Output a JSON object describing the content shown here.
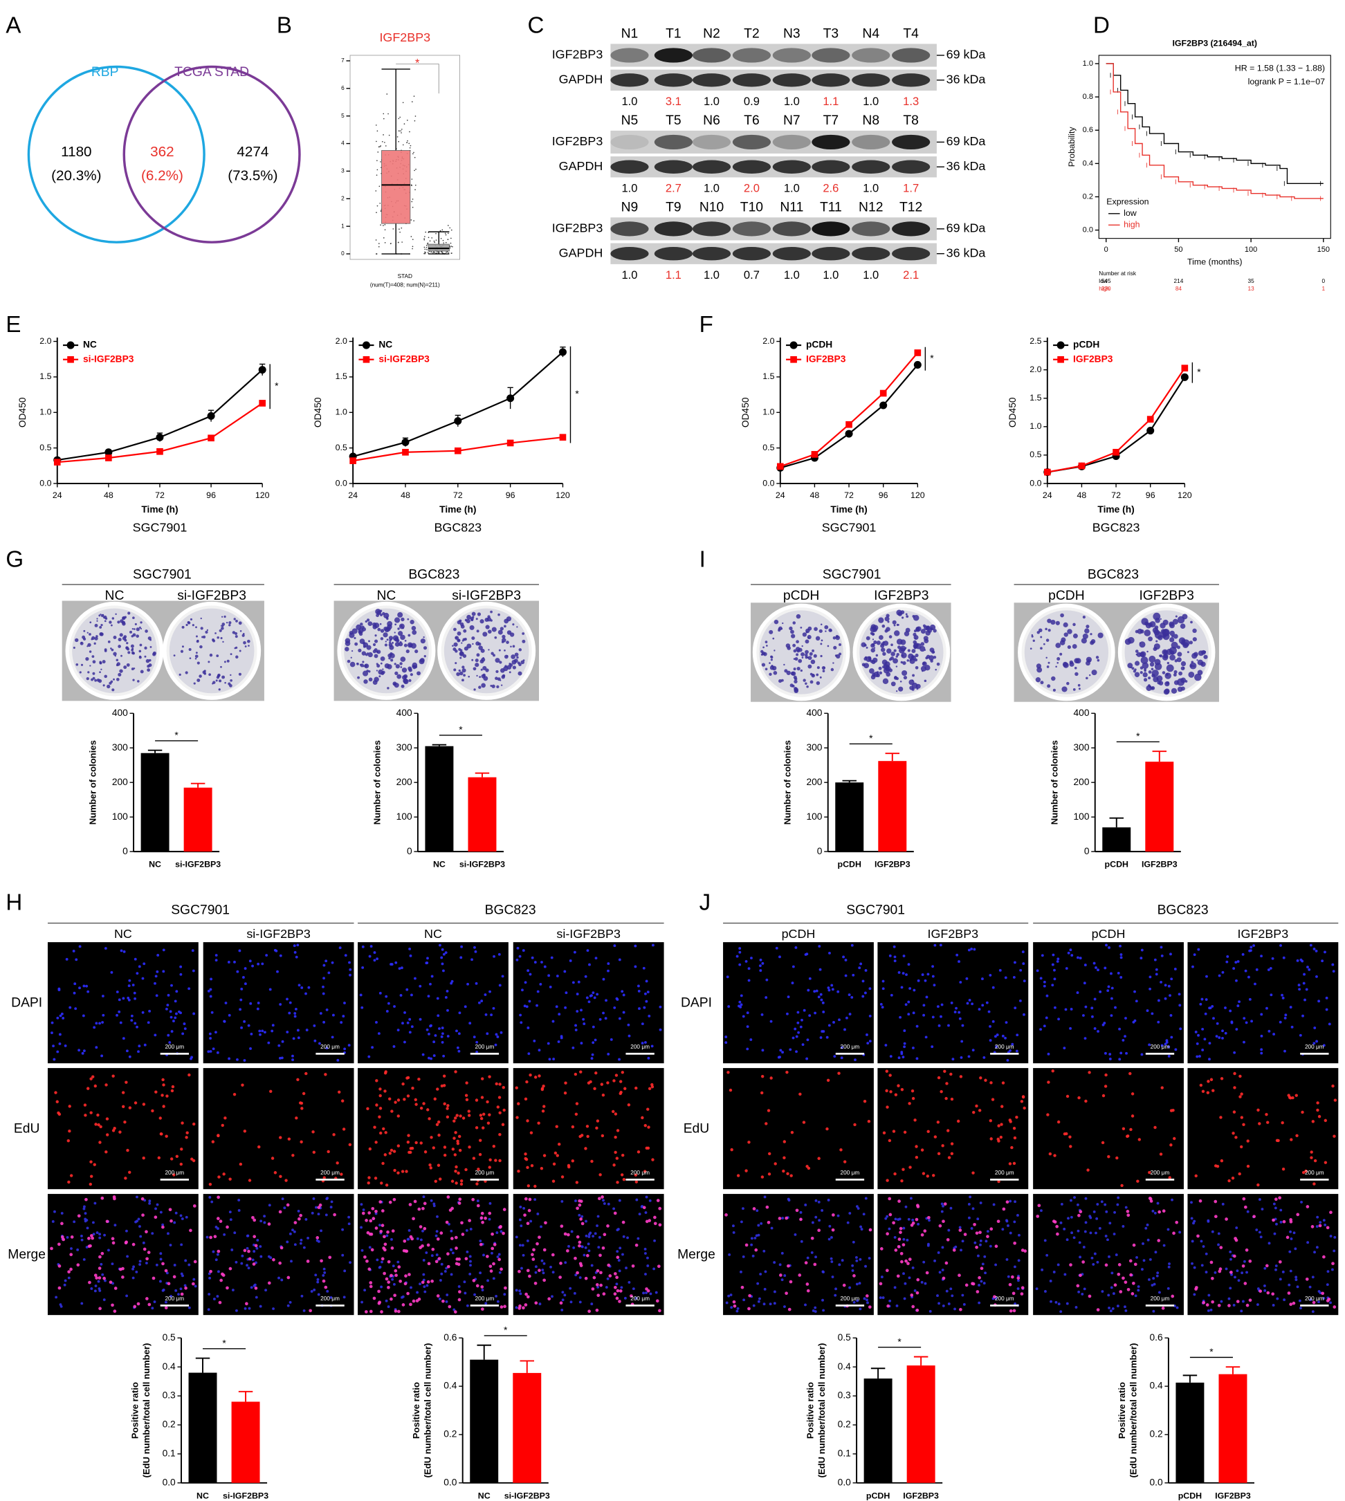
{
  "panel_labels": [
    "A",
    "B",
    "C",
    "D",
    "E",
    "F",
    "G",
    "H",
    "I",
    "J"
  ],
  "venn": {
    "sets": [
      {
        "name": "RBP",
        "color": "#1ea7e1"
      },
      {
        "name": "TCGA STAD",
        "color": "#7b3a96"
      }
    ],
    "regions": [
      {
        "count": "1180",
        "percent": "(20.3%)",
        "color": "#000000"
      },
      {
        "count": "362",
        "percent": "(6.2%)",
        "color": "#e8302a"
      },
      {
        "count": "4274",
        "percent": "(73.5%)",
        "color": "#000000"
      }
    ]
  },
  "blot": {
    "proteins": [
      "IGF2BP3",
      "GAPDH"
    ],
    "sizes": [
      "69 kDa",
      "36 kDa"
    ],
    "rows": [
      {
        "lanes": [
          "N1",
          "T1",
          "N2",
          "T2",
          "N3",
          "T3",
          "N4",
          "T4"
        ],
        "ratios": [
          "1.0",
          "3.1",
          "1.0",
          "0.9",
          "1.0",
          "1.1",
          "1.0",
          "1.3"
        ],
        "ratio_colors": [
          "#000000",
          "#e8302a",
          "#000000",
          "#000000",
          "#000000",
          "#e8302a",
          "#000000",
          "#e8302a"
        ]
      },
      {
        "lanes": [
          "N5",
          "T5",
          "N6",
          "T6",
          "N7",
          "T7",
          "N8",
          "T8"
        ],
        "ratios": [
          "1.0",
          "2.7",
          "1.0",
          "2.0",
          "1.0",
          "2.6",
          "1.0",
          "1.7"
        ],
        "ratio_colors": [
          "#000000",
          "#e8302a",
          "#000000",
          "#e8302a",
          "#000000",
          "#e8302a",
          "#000000",
          "#e8302a"
        ]
      },
      {
        "lanes": [
          "N9",
          "T9",
          "N10",
          "T10",
          "N11",
          "T11",
          "N12",
          "T12"
        ],
        "ratios": [
          "1.0",
          "1.1",
          "1.0",
          "0.7",
          "1.0",
          "1.0",
          "1.0",
          "2.1"
        ],
        "ratio_colors": [
          "#000000",
          "#e8302a",
          "#000000",
          "#000000",
          "#000000",
          "#000000",
          "#000000",
          "#e8302a"
        ]
      }
    ]
  },
  "chart_data": [
    {
      "type": "box",
      "title": "IGF2BP3",
      "title_color": "#e8302a",
      "xlabel": "STAD",
      "xnote": "(num(T)=408; num(N)=211)",
      "annotation": "*",
      "annotation_color": "#e8302a",
      "categories": [
        null,
        null
      ],
      "ylim": [
        -0.2,
        7.2
      ],
      "yticks": [
        0,
        1,
        2,
        3,
        4,
        5,
        6,
        7
      ],
      "series": [
        {
          "color": "#f0787a",
          "q1": 1.1,
          "median": 2.5,
          "q3": 3.75,
          "low": 0,
          "high": 6.7
        },
        {
          "color": "#9e9e9e",
          "q1": 0.1,
          "median": 0.2,
          "q3": 0.35,
          "low": 0,
          "high": 0.8
        }
      ]
    },
    {
      "type": "km",
      "title": "IGF2BP3 (216494_at)",
      "hr": "HR = 1.58 (1.33 − 1.88)",
      "logrank": "logrank P = 1.1e−07",
      "xlabel": "Time (months)",
      "ylabel": "Probability",
      "legend_title": "Expression",
      "xlim": [
        -5,
        155
      ],
      "ylim": [
        -0.05,
        1.05
      ],
      "xticks": [
        0,
        50,
        100,
        150
      ],
      "yticks": [
        {
          "value": 0,
          "label": "0.0"
        },
        0.2,
        0.4,
        0.6,
        0.8,
        {
          "value": 1,
          "label": "1.0"
        }
      ],
      "series": [
        {
          "name": "low",
          "color": "#000000",
          "x": [
            0,
            5,
            10,
            15,
            20,
            25,
            30,
            40,
            50,
            60,
            70,
            80,
            90,
            100,
            110,
            120,
            125,
            150
          ],
          "values": [
            1.0,
            0.93,
            0.84,
            0.76,
            0.68,
            0.62,
            0.58,
            0.52,
            0.47,
            0.45,
            0.44,
            0.43,
            0.42,
            0.4,
            0.39,
            0.37,
            0.28,
            0.28
          ]
        },
        {
          "name": "high",
          "color": "#e8302a",
          "x": [
            0,
            5,
            10,
            15,
            20,
            25,
            30,
            40,
            50,
            60,
            70,
            80,
            90,
            100,
            110,
            120,
            130,
            150
          ],
          "values": [
            1.0,
            0.83,
            0.71,
            0.61,
            0.52,
            0.45,
            0.39,
            0.32,
            0.29,
            0.27,
            0.26,
            0.25,
            0.24,
            0.22,
            0.21,
            0.2,
            0.19,
            0.19
          ]
        }
      ],
      "risk_table": {
        "title": "Number at risk",
        "rows": [
          {
            "name": "low",
            "color": "#000000",
            "values": [
              545,
              214,
              35,
              0
            ]
          },
          {
            "name": "high",
            "color": "#e8302a",
            "values": [
              330,
              84,
              13,
              1
            ]
          }
        ]
      }
    },
    {
      "type": "line",
      "xlabel": "Time (h)",
      "ylabel": "OD450",
      "caption": "SGC7901",
      "annotation": "*",
      "x": [
        24,
        48,
        72,
        96,
        120
      ],
      "xlim": [
        24,
        120
      ],
      "xticks": [
        24,
        48,
        72,
        96,
        120
      ],
      "ylim": [
        0,
        2
      ],
      "yticks": [
        {
          "value": 0,
          "label": "0.0"
        },
        0.5,
        {
          "value": 1,
          "label": "1.0"
        },
        1.5,
        {
          "value": 2,
          "label": "2.0"
        }
      ],
      "series": [
        {
          "name": "NC",
          "color": "#000000",
          "marker": "circle",
          "values": [
            0.33,
            0.44,
            0.65,
            0.95,
            1.6
          ],
          "errors": [
            0.02,
            0.03,
            0.06,
            0.08,
            0.08
          ]
        },
        {
          "name": "si-IGF2BP3",
          "color": "#ff0000",
          "marker": "square",
          "values": [
            0.3,
            0.36,
            0.45,
            0.64,
            1.13
          ],
          "errors": [
            0.02,
            0.02,
            0.03,
            0.03,
            0.03
          ]
        }
      ]
    },
    {
      "type": "line",
      "xlabel": "Time (h)",
      "ylabel": "OD450",
      "caption": "BGC823",
      "annotation": "*",
      "x": [
        24,
        48,
        72,
        96,
        120
      ],
      "xlim": [
        24,
        120
      ],
      "xticks": [
        24,
        48,
        72,
        96,
        120
      ],
      "ylim": [
        0,
        2
      ],
      "yticks": [
        {
          "value": 0,
          "label": "0.0"
        },
        0.5,
        {
          "value": 1,
          "label": "1.0"
        },
        1.5,
        {
          "value": 2,
          "label": "2.0"
        }
      ],
      "series": [
        {
          "name": "NC",
          "color": "#000000",
          "marker": "circle",
          "values": [
            0.38,
            0.58,
            0.88,
            1.2,
            1.85
          ],
          "errors": [
            0.03,
            0.06,
            0.08,
            0.15,
            0.07
          ]
        },
        {
          "name": "si-IGF2BP3",
          "color": "#ff0000",
          "marker": "square",
          "values": [
            0.32,
            0.44,
            0.46,
            0.57,
            0.65
          ],
          "errors": [
            0.02,
            0.03,
            0.03,
            0.03,
            0.03
          ]
        }
      ]
    },
    {
      "type": "line",
      "xlabel": "Time (h)",
      "ylabel": "OD450",
      "caption": "SGC7901",
      "annotation": "*",
      "x": [
        24,
        48,
        72,
        96,
        120
      ],
      "xlim": [
        24,
        120
      ],
      "xticks": [
        24,
        48,
        72,
        96,
        120
      ],
      "ylim": [
        0,
        2
      ],
      "yticks": [
        {
          "value": 0,
          "label": "0.0"
        },
        0.5,
        {
          "value": 1,
          "label": "1.0"
        },
        1.5,
        {
          "value": 2,
          "label": "2.0"
        }
      ],
      "series": [
        {
          "name": "pCDH",
          "color": "#000000",
          "marker": "circle",
          "values": [
            0.22,
            0.36,
            0.7,
            1.1,
            1.67
          ]
        },
        {
          "name": "IGF2BP3",
          "color": "#ff0000",
          "marker": "square",
          "values": [
            0.24,
            0.41,
            0.83,
            1.27,
            1.84
          ]
        }
      ]
    },
    {
      "type": "line",
      "xlabel": "Time (h)",
      "ylabel": "OD450",
      "caption": "BGC823",
      "annotation": "*",
      "x": [
        24,
        48,
        72,
        96,
        120
      ],
      "xlim": [
        24,
        120
      ],
      "xticks": [
        24,
        48,
        72,
        96,
        120
      ],
      "ylim": [
        0,
        2.5
      ],
      "yticks": [
        {
          "value": 0,
          "label": "0.0"
        },
        0.5,
        {
          "value": 1,
          "label": "1.0"
        },
        1.5,
        {
          "value": 2,
          "label": "2.0"
        },
        2.5
      ],
      "series": [
        {
          "name": "pCDH",
          "color": "#000000",
          "marker": "circle",
          "values": [
            0.2,
            0.3,
            0.48,
            0.93,
            1.87
          ]
        },
        {
          "name": "IGF2BP3",
          "color": "#ff0000",
          "marker": "square",
          "values": [
            0.2,
            0.31,
            0.55,
            1.13,
            2.03
          ]
        }
      ]
    },
    {
      "type": "bar",
      "ylabel": [
        "Number of colonies"
      ],
      "annotation": "*",
      "categories": [
        "NC",
        "si-IGF2BP3"
      ],
      "values": [
        285,
        185
      ],
      "errors": [
        8,
        12
      ],
      "colors": [
        "#000000",
        "#ff0000"
      ],
      "ylim": [
        0,
        400
      ],
      "yticks": [
        0,
        100,
        200,
        300,
        400
      ]
    },
    {
      "type": "bar",
      "ylabel": [
        "Number of colonies"
      ],
      "annotation": "*",
      "categories": [
        "NC",
        "si-IGF2BP3"
      ],
      "values": [
        305,
        215
      ],
      "errors": [
        4,
        12
      ],
      "colors": [
        "#000000",
        "#ff0000"
      ],
      "ylim": [
        0,
        400
      ],
      "yticks": [
        0,
        100,
        200,
        300,
        400
      ]
    },
    {
      "type": "bar",
      "ylabel": [
        "Number of colonies"
      ],
      "annotation": "*",
      "categories": [
        "pCDH",
        "IGF2BP3"
      ],
      "values": [
        200,
        262
      ],
      "errors": [
        5,
        22
      ],
      "colors": [
        "#000000",
        "#ff0000"
      ],
      "ylim": [
        0,
        400
      ],
      "yticks": [
        0,
        100,
        200,
        300,
        400
      ]
    },
    {
      "type": "bar",
      "ylabel": [
        "Number of colonies"
      ],
      "annotation": "*",
      "categories": [
        "pCDH",
        "IGF2BP3"
      ],
      "values": [
        70,
        260
      ],
      "errors": [
        27,
        30
      ],
      "colors": [
        "#000000",
        "#ff0000"
      ],
      "ylim": [
        0,
        400
      ],
      "yticks": [
        0,
        100,
        200,
        300,
        400
      ]
    },
    {
      "type": "bar",
      "ylabel": [
        "Positive ratio",
        "(EdU number/total cell number)"
      ],
      "annotation": "*",
      "categories": [
        "NC",
        "si-IGF2BP3"
      ],
      "values": [
        0.38,
        0.28
      ],
      "errors": [
        0.05,
        0.035
      ],
      "colors": [
        "#000000",
        "#ff0000"
      ],
      "ylim": [
        0,
        0.5
      ],
      "yticks": [
        {
          "value": 0,
          "label": "0.0"
        },
        0.1,
        0.2,
        0.3,
        0.4,
        0.5
      ]
    },
    {
      "type": "bar",
      "ylabel": [
        "Positive ratio",
        "(EdU number/total cell number)"
      ],
      "annotation": "*",
      "categories": [
        "NC",
        "si-IGF2BP3"
      ],
      "values": [
        0.51,
        0.455
      ],
      "errors": [
        0.06,
        0.05
      ],
      "colors": [
        "#000000",
        "#ff0000"
      ],
      "ylim": [
        0,
        0.6
      ],
      "yticks": [
        {
          "value": 0,
          "label": "0.0"
        },
        0.2,
        0.4,
        0.6
      ]
    },
    {
      "type": "bar",
      "ylabel": [
        "Positive ratio",
        "(EdU number/total cell number)"
      ],
      "annotation": "*",
      "categories": [
        "pCDH",
        "IGF2BP3"
      ],
      "values": [
        0.36,
        0.405
      ],
      "errors": [
        0.035,
        0.03
      ],
      "colors": [
        "#000000",
        "#ff0000"
      ],
      "ylim": [
        0,
        0.5
      ],
      "yticks": [
        {
          "value": 0,
          "label": "0.0"
        },
        0.1,
        0.2,
        0.3,
        0.4,
        0.5
      ]
    },
    {
      "type": "bar",
      "ylabel": [
        "Positive ratio",
        "(EdU number/total cell number)"
      ],
      "annotation": "*",
      "categories": [
        "pCDH",
        "IGF2BP3"
      ],
      "values": [
        0.415,
        0.45
      ],
      "errors": [
        0.03,
        0.03
      ],
      "colors": [
        "#000000",
        "#ff0000"
      ],
      "ylim": [
        0,
        0.6
      ],
      "yticks": [
        {
          "value": 0,
          "label": "0.0"
        },
        0.2,
        0.4,
        0.6
      ]
    }
  ],
  "panel_G": {
    "groups": [
      {
        "title": "SGC7901",
        "columns": [
          "NC",
          "si-IGF2BP3"
        ]
      },
      {
        "title": "BGC823",
        "columns": [
          "NC",
          "si-IGF2BP3"
        ]
      }
    ]
  },
  "panel_I": {
    "groups": [
      {
        "title": "SGC7901",
        "columns": [
          "pCDH",
          "IGF2BP3"
        ]
      },
      {
        "title": "BGC823",
        "columns": [
          "pCDH",
          "IGF2BP3"
        ]
      }
    ]
  },
  "panel_H": {
    "groups": [
      {
        "title": "SGC7901",
        "columns": [
          "NC",
          "si-IGF2BP3"
        ]
      },
      {
        "title": "BGC823",
        "columns": [
          "NC",
          "si-IGF2BP3"
        ]
      }
    ],
    "rows": [
      "DAPI",
      "EdU",
      "Merge"
    ],
    "scale_bar": "200 μm"
  },
  "panel_J": {
    "groups": [
      {
        "title": "SGC7901",
        "columns": [
          "pCDH",
          "IGF2BP3"
        ]
      },
      {
        "title": "BGC823",
        "columns": [
          "pCDH",
          "IGF2BP3"
        ]
      }
    ],
    "rows": [
      "DAPI",
      "EdU",
      "Merge"
    ],
    "scale_bar": "200 μm"
  }
}
